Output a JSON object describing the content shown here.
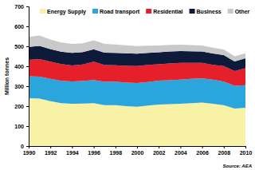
{
  "chart_data": {
    "type": "area",
    "stacked": true,
    "legend": "top",
    "y_label": "Million tonnes",
    "source": "Source: AEA",
    "x": [
      1990,
      1991,
      1992,
      1993,
      1994,
      1995,
      1996,
      1997,
      1998,
      1999,
      2000,
      2001,
      2002,
      2003,
      2004,
      2005,
      2006,
      2007,
      2008,
      2009,
      2010
    ],
    "xlim": [
      1990,
      2010
    ],
    "xticks": [
      1990,
      1992,
      1994,
      1996,
      1998,
      2000,
      2002,
      2004,
      2006,
      2008,
      2010
    ],
    "ylim": [
      0,
      700
    ],
    "yticks": [
      0,
      100,
      200,
      300,
      400,
      500,
      600,
      700
    ],
    "series": [
      {
        "name": "Energy Supply",
        "color": "#f8f2a6",
        "values": [
          240,
          238,
          225,
          215,
          212,
          213,
          215,
          205,
          205,
          200,
          197,
          203,
          208,
          210,
          212,
          215,
          218,
          212,
          205,
          188,
          192
        ]
      },
      {
        "name": "Road transport",
        "color": "#2aa6dc",
        "values": [
          110,
          110,
          112,
          112,
          112,
          113,
          116,
          117,
          118,
          118,
          119,
          118,
          120,
          120,
          121,
          122,
          121,
          121,
          118,
          114,
          113
        ]
      },
      {
        "name": "Residential",
        "color": "#e5202a",
        "values": [
          82,
          88,
          86,
          84,
          80,
          83,
          92,
          84,
          82,
          84,
          85,
          86,
          82,
          84,
          84,
          80,
          78,
          74,
          78,
          74,
          85
        ]
      },
      {
        "name": "Business",
        "color": "#0e1a3a",
        "values": [
          65,
          66,
          63,
          62,
          63,
          62,
          62,
          62,
          62,
          63,
          62,
          60,
          60,
          60,
          59,
          58,
          57,
          57,
          55,
          48,
          50
        ]
      },
      {
        "name": "Other",
        "color": "#c9c9c9",
        "values": [
          50,
          52,
          48,
          46,
          45,
          44,
          45,
          44,
          42,
          40,
          38,
          36,
          34,
          33,
          32,
          31,
          30,
          29,
          28,
          26,
          25
        ]
      }
    ]
  }
}
